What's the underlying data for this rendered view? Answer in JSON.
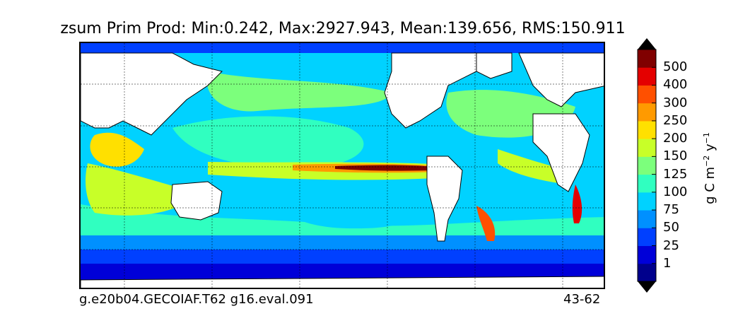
{
  "chart_data": {
    "type": "heatmap",
    "title": "zsum Prim Prod: Min:0.242, Max:2927.943, Mean:139.656, RMS:150.911",
    "footer_left": "g.e20b04.GECOIAF.T62 g16.eval.091",
    "footer_right": "43-62",
    "colorbar": {
      "label": "g C m⁻² y⁻¹",
      "extend": "both",
      "levels": [
        1,
        25,
        50,
        75,
        100,
        125,
        150,
        200,
        250,
        300,
        400,
        500
      ],
      "tick_labels": [
        "1",
        "25",
        "50",
        "75",
        "100",
        "125",
        "150",
        "200",
        "250",
        "300",
        "400",
        "500"
      ],
      "colors": [
        "#00008c",
        "#0000d8",
        "#0040ff",
        "#0090ff",
        "#00d2ff",
        "#30ffc0",
        "#7cff7c",
        "#c8ff28",
        "#ffe000",
        "#ff9a00",
        "#ff5000",
        "#e40000",
        "#800000"
      ]
    },
    "projection": "global lat-lon map with continents masked white",
    "grid": "dashed"
  }
}
